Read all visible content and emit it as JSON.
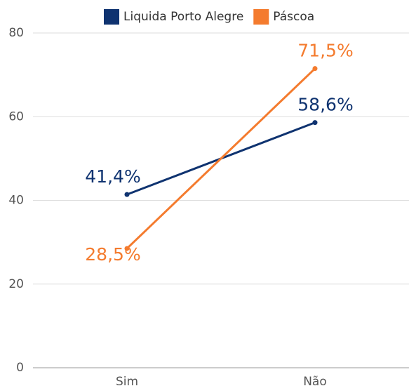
{
  "chart_data": {
    "type": "line",
    "categories": [
      "Sim",
      "Não"
    ],
    "series": [
      {
        "name": "Liquida Porto Alegre",
        "color": "#0f3370",
        "values": [
          41.4,
          58.6
        ],
        "value_labels": [
          "41,4%",
          "58,6%"
        ]
      },
      {
        "name": "Páscoa",
        "color": "#f47b2e",
        "values": [
          28.5,
          71.5
        ],
        "value_labels": [
          "28,5%",
          "71,5%"
        ]
      }
    ],
    "ylim": [
      0,
      80
    ],
    "yticks": [
      0,
      20,
      40,
      60,
      80
    ],
    "grid": true,
    "legend": "top"
  }
}
